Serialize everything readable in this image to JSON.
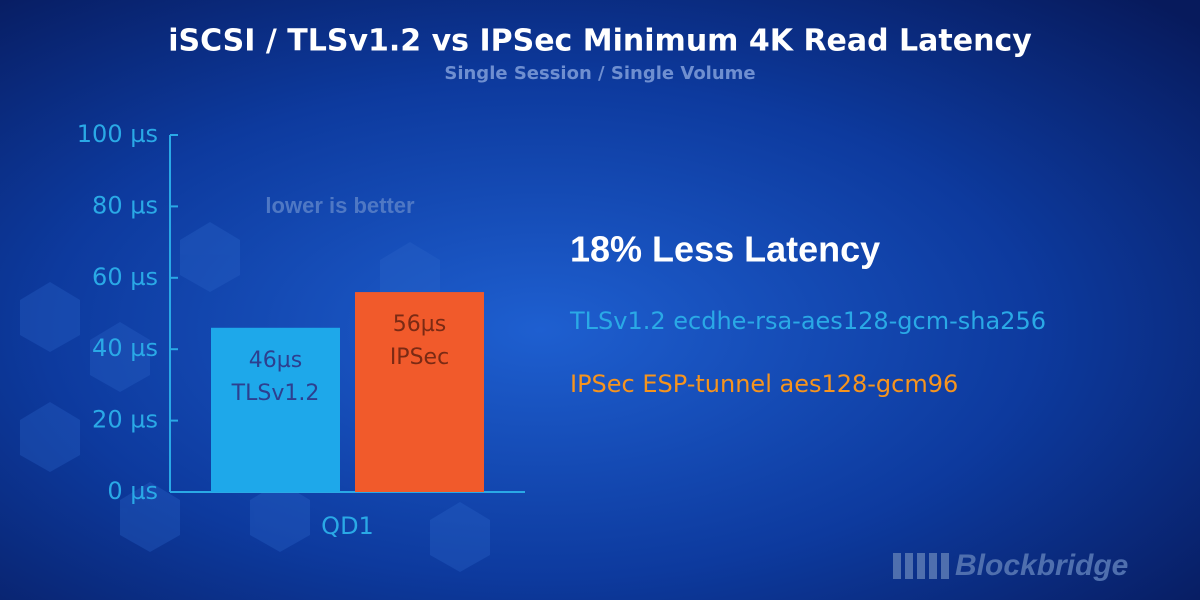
{
  "chart_data": {
    "type": "bar",
    "title": "iSCSI / TLSv1.2 vs IPSec Minimum 4K Read Latency",
    "subtitle": "Single Session / Single Volume",
    "categories": [
      "QD1"
    ],
    "series": [
      {
        "name": "TLSv1.2",
        "color": "#1ea8ea",
        "values": [
          46
        ],
        "value_labels": [
          "46µs"
        ]
      },
      {
        "name": "IPSec",
        "color": "#f15a2b",
        "values": [
          56
        ],
        "value_labels": [
          "56µs"
        ]
      }
    ],
    "ylim": [
      0,
      100
    ],
    "yticks": [
      {
        "value": 0,
        "label": "0 µs"
      },
      {
        "value": 20,
        "label": "20 µs"
      },
      {
        "value": 40,
        "label": "40 µs"
      },
      {
        "value": 60,
        "label": "60 µs"
      },
      {
        "value": 80,
        "label": "80 µs"
      },
      {
        "value": 100,
        "label": "100 µs"
      }
    ],
    "annotations": [
      "lower is better",
      "18% Less Latency",
      "TLSv1.2 ecdhe-rsa-aes128-gcm-sha256",
      "IPSec ESP-tunnel aes128-gcm96",
      "Blockbridge"
    ]
  }
}
